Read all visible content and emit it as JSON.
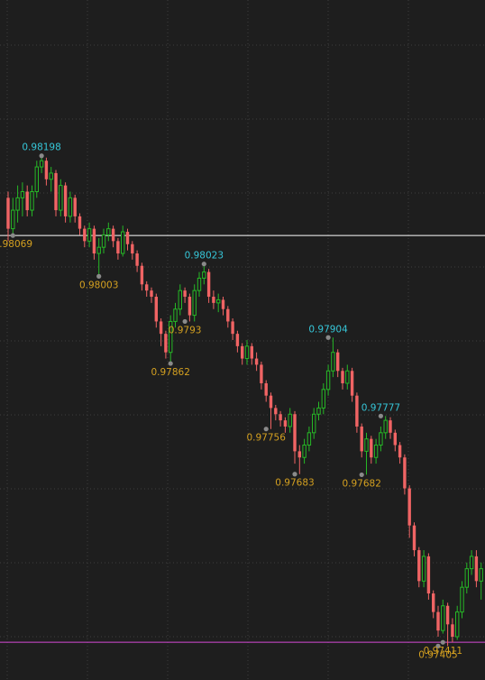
{
  "chart_data": {
    "type": "candlestick",
    "xlabel": "",
    "ylabel": "",
    "ylim": [
      0.9735,
      0.9845
    ],
    "grid": true,
    "colors": {
      "background": "#1e1e1e",
      "bullish": "#26b826",
      "bearish": "#f06464",
      "grid": "#3d3d3d",
      "high_label": "#36c6d8",
      "low_label": "#d4a020",
      "marker": "#8a8a8a",
      "line_upper": "#ffffff",
      "line_lower": "#d64ad6"
    },
    "horizontal_lines": [
      {
        "name": "upper",
        "value": 0.98069,
        "color": "#ffffff"
      },
      {
        "name": "lower",
        "value": 0.97411,
        "color": "#d64ad6"
      }
    ],
    "candles": [
      [
        0.9813,
        0.9814,
        0.9806,
        0.9808
      ],
      [
        0.9808,
        0.9813,
        0.98069,
        0.9811
      ],
      [
        0.9811,
        0.9815,
        0.9809,
        0.9813
      ],
      [
        0.9813,
        0.98155,
        0.981,
        0.9814
      ],
      [
        0.9814,
        0.9815,
        0.981,
        0.9811
      ],
      [
        0.9811,
        0.9815,
        0.981,
        0.9814
      ],
      [
        0.9814,
        0.9819,
        0.9813,
        0.9818
      ],
      [
        0.9818,
        0.98198,
        0.9817,
        0.9819
      ],
      [
        0.9819,
        0.98195,
        0.9815,
        0.9816
      ],
      [
        0.9816,
        0.9818,
        0.9814,
        0.9817
      ],
      [
        0.9817,
        0.98175,
        0.981,
        0.9811
      ],
      [
        0.9811,
        0.9816,
        0.981,
        0.9815
      ],
      [
        0.9815,
        0.98155,
        0.9809,
        0.981
      ],
      [
        0.981,
        0.9814,
        0.9809,
        0.9813
      ],
      [
        0.9813,
        0.98135,
        0.9809,
        0.981
      ],
      [
        0.981,
        0.98105,
        0.9807,
        0.9808
      ],
      [
        0.9808,
        0.98085,
        0.9805,
        0.9806
      ],
      [
        0.9806,
        0.9809,
        0.9805,
        0.9808
      ],
      [
        0.9808,
        0.98085,
        0.9803,
        0.9804
      ],
      [
        0.9804,
        0.98065,
        0.98003,
        0.9805
      ],
      [
        0.9805,
        0.9808,
        0.9804,
        0.9807
      ],
      [
        0.9807,
        0.9809,
        0.9806,
        0.9808
      ],
      [
        0.9808,
        0.98085,
        0.9805,
        0.9806
      ],
      [
        0.9806,
        0.98065,
        0.9803,
        0.9804
      ],
      [
        0.9804,
        0.98085,
        0.98035,
        0.98075
      ],
      [
        0.98075,
        0.9808,
        0.98045,
        0.98055
      ],
      [
        0.98055,
        0.9806,
        0.9803,
        0.9804
      ],
      [
        0.9804,
        0.98045,
        0.9801,
        0.9802
      ],
      [
        0.9802,
        0.98025,
        0.9798,
        0.9799
      ],
      [
        0.9799,
        0.97995,
        0.9797,
        0.9798
      ],
      [
        0.9798,
        0.97985,
        0.9796,
        0.9797
      ],
      [
        0.9797,
        0.97975,
        0.9792,
        0.9793
      ],
      [
        0.9793,
        0.97935,
        0.9789,
        0.9791
      ],
      [
        0.9791,
        0.97915,
        0.9787,
        0.9788
      ],
      [
        0.9788,
        0.9794,
        0.97862,
        0.9793
      ],
      [
        0.9793,
        0.9796,
        0.9792,
        0.9795
      ],
      [
        0.9795,
        0.9799,
        0.9794,
        0.9798
      ],
      [
        0.9798,
        0.97985,
        0.9796,
        0.9797
      ],
      [
        0.9797,
        0.97975,
        0.9793,
        0.9794
      ],
      [
        0.9794,
        0.9799,
        0.9793,
        0.9798
      ],
      [
        0.9798,
        0.9801,
        0.9797,
        0.98
      ],
      [
        0.98,
        0.98023,
        0.9799,
        0.9801
      ],
      [
        0.9801,
        0.98015,
        0.9796,
        0.9797
      ],
      [
        0.9797,
        0.9798,
        0.9795,
        0.9796
      ],
      [
        0.9796,
        0.97975,
        0.97945,
        0.97965
      ],
      [
        0.97965,
        0.9797,
        0.9794,
        0.9795
      ],
      [
        0.9795,
        0.97955,
        0.9792,
        0.9793
      ],
      [
        0.9793,
        0.97935,
        0.979,
        0.9791
      ],
      [
        0.9791,
        0.97915,
        0.9788,
        0.9789
      ],
      [
        0.9789,
        0.97895,
        0.9786,
        0.9787
      ],
      [
        0.9787,
        0.979,
        0.9786,
        0.9789
      ],
      [
        0.9789,
        0.97895,
        0.9786,
        0.9787
      ],
      [
        0.9787,
        0.9788,
        0.9785,
        0.9786
      ],
      [
        0.9786,
        0.97865,
        0.9782,
        0.9783
      ],
      [
        0.9783,
        0.97835,
        0.978,
        0.9781
      ],
      [
        0.9781,
        0.97815,
        0.97756,
        0.9779
      ],
      [
        0.9779,
        0.97795,
        0.9777,
        0.9778
      ],
      [
        0.9778,
        0.97785,
        0.9776,
        0.9777
      ],
      [
        0.9777,
        0.97775,
        0.9775,
        0.9776
      ],
      [
        0.9776,
        0.9779,
        0.9775,
        0.9778
      ],
      [
        0.9778,
        0.97785,
        0.977,
        0.9772
      ],
      [
        0.9772,
        0.9773,
        0.97683,
        0.9771
      ],
      [
        0.9771,
        0.9774,
        0.977,
        0.9773
      ],
      [
        0.9773,
        0.9776,
        0.9772,
        0.9775
      ],
      [
        0.9775,
        0.9779,
        0.9774,
        0.9778
      ],
      [
        0.9778,
        0.978,
        0.9777,
        0.9779
      ],
      [
        0.9779,
        0.9783,
        0.9778,
        0.9782
      ],
      [
        0.9782,
        0.9786,
        0.9781,
        0.9785
      ],
      [
        0.9785,
        0.97904,
        0.9784,
        0.9788
      ],
      [
        0.9788,
        0.97885,
        0.9784,
        0.9785
      ],
      [
        0.9785,
        0.97855,
        0.9782,
        0.9783
      ],
      [
        0.9783,
        0.9786,
        0.9782,
        0.9785
      ],
      [
        0.9785,
        0.97855,
        0.978,
        0.9781
      ],
      [
        0.9781,
        0.97815,
        0.9775,
        0.9776
      ],
      [
        0.9776,
        0.97765,
        0.9771,
        0.9772
      ],
      [
        0.9772,
        0.9775,
        0.97682,
        0.9774
      ],
      [
        0.9774,
        0.97745,
        0.977,
        0.9771
      ],
      [
        0.9771,
        0.9774,
        0.977,
        0.9773
      ],
      [
        0.9773,
        0.9776,
        0.9772,
        0.9775
      ],
      [
        0.9775,
        0.97777,
        0.9774,
        0.9777
      ],
      [
        0.9777,
        0.97775,
        0.9774,
        0.9775
      ],
      [
        0.9775,
        0.97755,
        0.9772,
        0.9773
      ],
      [
        0.9773,
        0.97735,
        0.977,
        0.9771
      ],
      [
        0.9771,
        0.97715,
        0.9765,
        0.9766
      ],
      [
        0.9766,
        0.97665,
        0.9758,
        0.976
      ],
      [
        0.976,
        0.97605,
        0.9755,
        0.9756
      ],
      [
        0.9756,
        0.97565,
        0.975,
        0.9751
      ],
      [
        0.9751,
        0.9756,
        0.975,
        0.9755
      ],
      [
        0.9755,
        0.97555,
        0.9748,
        0.9749
      ],
      [
        0.9749,
        0.97495,
        0.9745,
        0.9746
      ],
      [
        0.9746,
        0.9747,
        0.9742,
        0.9743
      ],
      [
        0.9743,
        0.9748,
        0.97425,
        0.9747
      ],
      [
        0.9747,
        0.97475,
        0.97405,
        0.9744
      ],
      [
        0.9744,
        0.9745,
        0.97411,
        0.9742
      ],
      [
        0.9742,
        0.9747,
        0.97415,
        0.9746
      ],
      [
        0.9746,
        0.9751,
        0.9745,
        0.975
      ],
      [
        0.975,
        0.9754,
        0.9749,
        0.9753
      ],
      [
        0.9753,
        0.9756,
        0.9752,
        0.9755
      ],
      [
        0.9755,
        0.9756,
        0.975,
        0.9751
      ],
      [
        0.9751,
        0.9754,
        0.9748,
        0.9753
      ]
    ],
    "annotations": [
      {
        "kind": "high",
        "text": "0.98198",
        "index": 7,
        "value": 0.98198
      },
      {
        "kind": "low",
        "text": "0.98069",
        "index": 1,
        "value": 0.98069
      },
      {
        "kind": "low",
        "text": "0.98003",
        "index": 19,
        "value": 0.98003
      },
      {
        "kind": "high",
        "text": "0.98023",
        "index": 41,
        "value": 0.98023
      },
      {
        "kind": "low",
        "text": "0.9793",
        "index": 37,
        "value": 0.9793
      },
      {
        "kind": "low",
        "text": "0.97862",
        "index": 34,
        "value": 0.97862
      },
      {
        "kind": "high",
        "text": "0.97904",
        "index": 67,
        "value": 0.97904
      },
      {
        "kind": "low",
        "text": "0.97756",
        "index": 54,
        "value": 0.97756
      },
      {
        "kind": "low",
        "text": "0.97683",
        "index": 60,
        "value": 0.97683
      },
      {
        "kind": "low",
        "text": "0.97682",
        "index": 74,
        "value": 0.97682
      },
      {
        "kind": "high",
        "text": "0.97777",
        "index": 78,
        "value": 0.97777
      },
      {
        "kind": "low",
        "text": "0.97405",
        "index": 90,
        "value": 0.97405
      },
      {
        "kind": "low",
        "text": "0.97411",
        "index": 91,
        "value": 0.97411
      }
    ]
  }
}
